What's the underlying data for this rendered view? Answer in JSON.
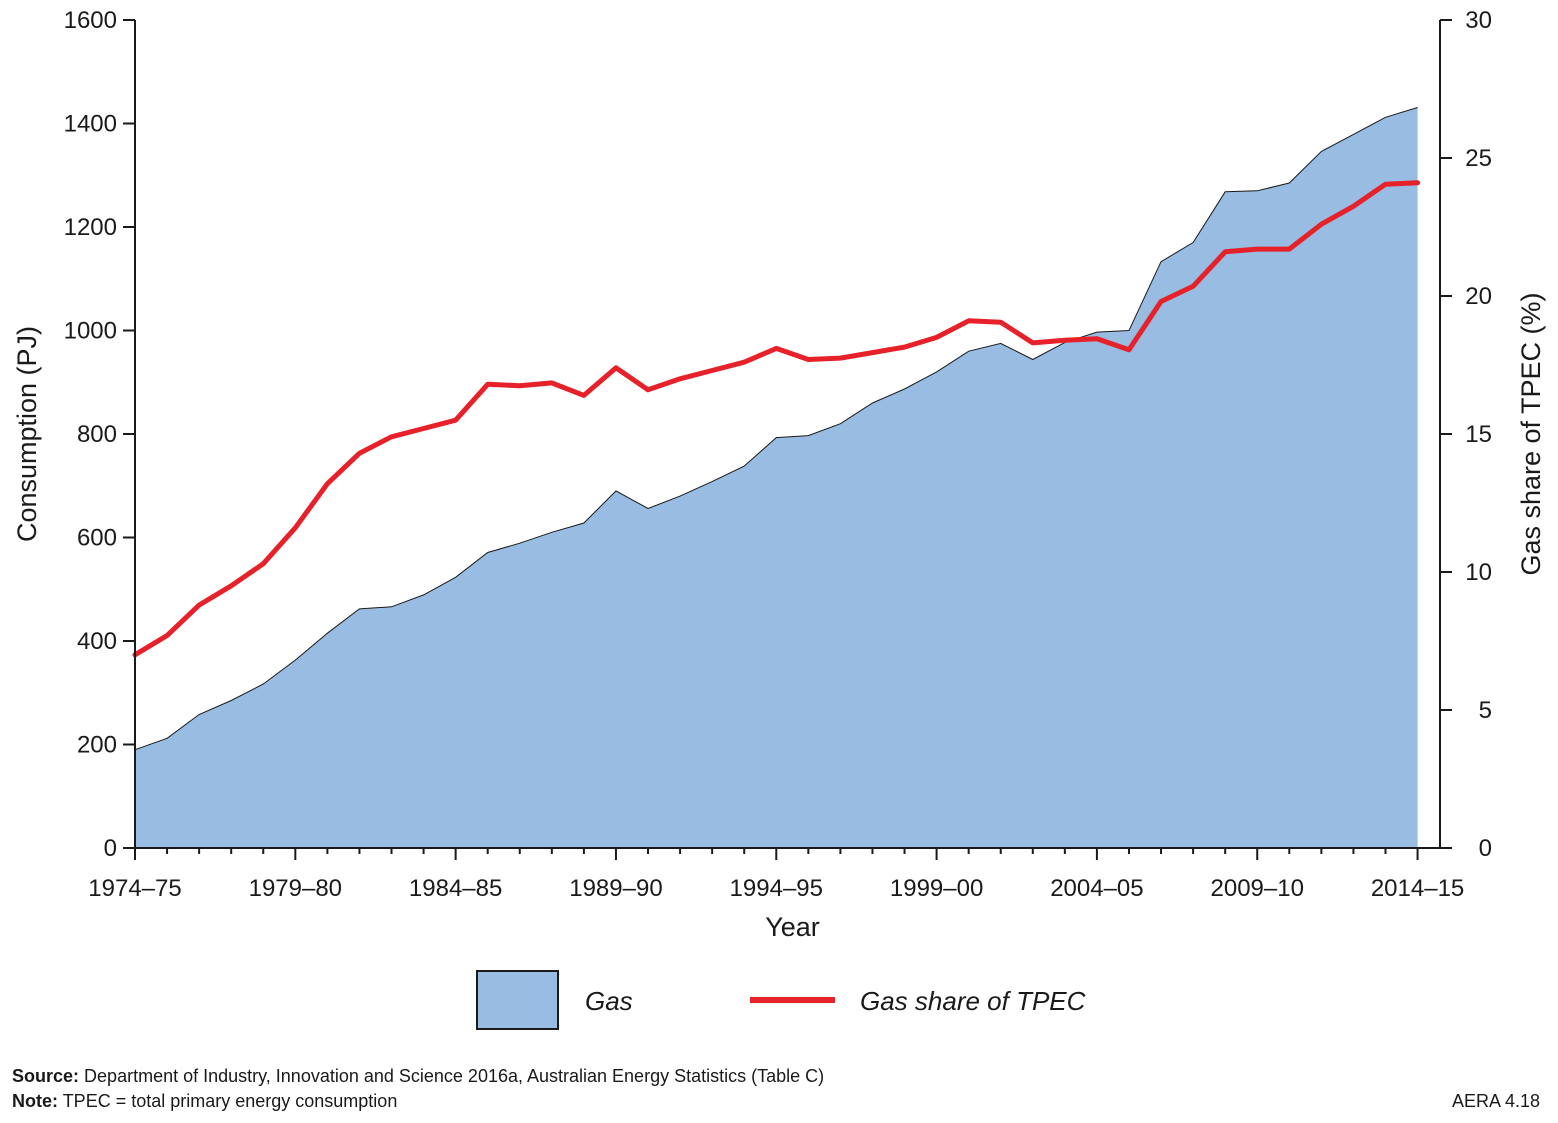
{
  "chart_data": {
    "type": "area",
    "x": [
      "1974–75",
      "1975–76",
      "1976–77",
      "1977–78",
      "1978–79",
      "1979–80",
      "1980–81",
      "1981–82",
      "1982–83",
      "1983–84",
      "1984–85",
      "1985–86",
      "1986–87",
      "1987–88",
      "1988–89",
      "1989–90",
      "1990–91",
      "1991–92",
      "1992–93",
      "1993–94",
      "1994–95",
      "1995–96",
      "1996–97",
      "1997–98",
      "1998–99",
      "1999–00",
      "2000–01",
      "2001–02",
      "2002–03",
      "2003–04",
      "2004–05",
      "2005–06",
      "2006–07",
      "2007–08",
      "2008–09",
      "2009–10",
      "2010–11",
      "2011–12",
      "2012–13",
      "2013–14",
      "2014–15"
    ],
    "x_tick_labels": [
      "1974–75",
      "1979–80",
      "1984–85",
      "1989–90",
      "1994–95",
      "1999–00",
      "2004–05",
      "2009–10",
      "2014–15"
    ],
    "series": [
      {
        "name": "Gas",
        "kind": "area",
        "axis": "left",
        "color": "#98bce2",
        "values": [
          190,
          212,
          258,
          285,
          317,
          363,
          415,
          462,
          466,
          489,
          523,
          571,
          589,
          610,
          628,
          690,
          656,
          680,
          708,
          738,
          793,
          797,
          820,
          860,
          887,
          920,
          960,
          975,
          944,
          977,
          997,
          1000,
          1133,
          1170,
          1268,
          1270,
          1285,
          1346,
          1379,
          1412,
          1431
        ]
      },
      {
        "name": "Gas share of TPEC",
        "kind": "line",
        "axis": "right",
        "color": "#e62129",
        "values": [
          7.0,
          7.7,
          8.8,
          9.5,
          10.3,
          11.6,
          13.2,
          14.3,
          14.9,
          15.2,
          15.5,
          16.8,
          16.75,
          16.85,
          16.4,
          17.4,
          16.6,
          17.0,
          17.3,
          17.6,
          18.1,
          17.7,
          17.75,
          17.95,
          18.15,
          18.5,
          19.1,
          19.05,
          18.3,
          18.4,
          18.45,
          18.05,
          19.8,
          20.35,
          21.6,
          21.7,
          21.7,
          22.6,
          23.25,
          24.05,
          24.1
        ]
      }
    ],
    "xlabel": "Year",
    "ylabel": "Consumption (PJ)",
    "y2label": "Gas share of TPEC (%)",
    "ylim": [
      0,
      1600
    ],
    "y_ticks": [
      0,
      200,
      400,
      600,
      800,
      1000,
      1200,
      1400,
      1600
    ],
    "y2lim": [
      0,
      30
    ],
    "y2_ticks": [
      0,
      5,
      10,
      15,
      20,
      25,
      30
    ],
    "grid": false,
    "legend_position": "bottom"
  },
  "footer": {
    "source_label": "Source:",
    "source_text": "Department of Industry, Innovation and Science 2016a, Australian Energy Statistics (Table C)",
    "note_label": "Note:",
    "note_text": "TPEC = total primary energy consumption",
    "figure_id": "AERA 4.18"
  }
}
